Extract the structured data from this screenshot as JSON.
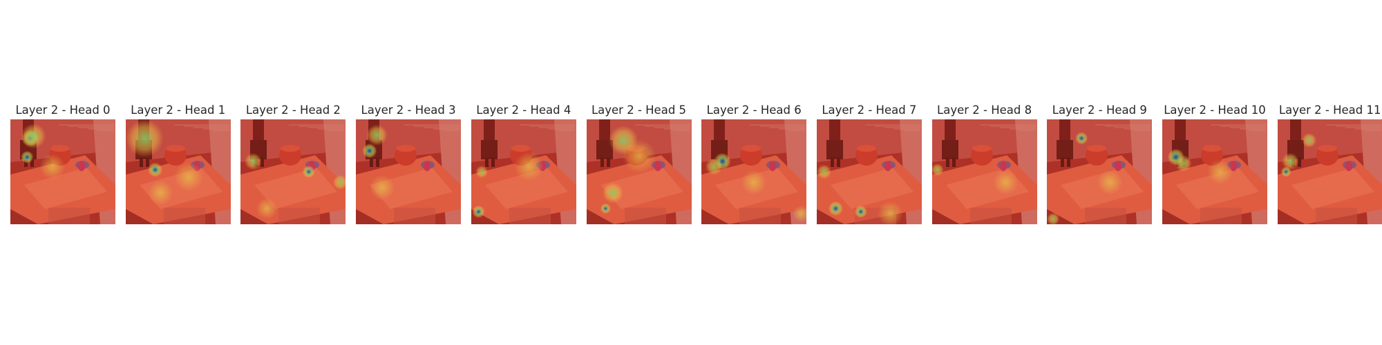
{
  "figure": {
    "panels": [
      {
        "title": "Layer 2 - Head 0",
        "image": "robot-tabletop-attention-heatmap",
        "hotspots": [
          {
            "kind": "blue",
            "u": 0.19,
            "v": 0.18,
            "r": 0.08
          },
          {
            "kind": "green",
            "u": 0.22,
            "v": 0.16,
            "r": 0.12
          },
          {
            "kind": "blue",
            "u": 0.16,
            "v": 0.36,
            "r": 0.06
          },
          {
            "kind": "yellow",
            "u": 0.4,
            "v": 0.45,
            "r": 0.12
          }
        ]
      },
      {
        "title": "Layer 2 - Head 1",
        "image": "robot-tabletop-attention-heatmap",
        "hotspots": [
          {
            "kind": "green",
            "u": 0.18,
            "v": 0.18,
            "r": 0.18
          },
          {
            "kind": "blue",
            "u": 0.28,
            "v": 0.48,
            "r": 0.07
          },
          {
            "kind": "yellow",
            "u": 0.6,
            "v": 0.55,
            "r": 0.14
          },
          {
            "kind": "yellow",
            "u": 0.33,
            "v": 0.7,
            "r": 0.12
          }
        ]
      },
      {
        "title": "Layer 2 - Head 2",
        "image": "robot-tabletop-attention-heatmap",
        "hotspots": [
          {
            "kind": "green",
            "u": 0.12,
            "v": 0.4,
            "r": 0.08
          },
          {
            "kind": "blue",
            "u": 0.65,
            "v": 0.5,
            "r": 0.06
          },
          {
            "kind": "green",
            "u": 0.95,
            "v": 0.6,
            "r": 0.07
          },
          {
            "kind": "yellow",
            "u": 0.25,
            "v": 0.85,
            "r": 0.1
          }
        ]
      },
      {
        "title": "Layer 2 - Head 3",
        "image": "robot-tabletop-attention-heatmap",
        "hotspots": [
          {
            "kind": "blue",
            "u": 0.13,
            "v": 0.3,
            "r": 0.07
          },
          {
            "kind": "green",
            "u": 0.2,
            "v": 0.15,
            "r": 0.1
          },
          {
            "kind": "yellow",
            "u": 0.25,
            "v": 0.65,
            "r": 0.12
          }
        ]
      },
      {
        "title": "Layer 2 - Head 4",
        "image": "robot-tabletop-attention-heatmap",
        "hotspots": [
          {
            "kind": "blue",
            "u": 0.07,
            "v": 0.88,
            "r": 0.06
          },
          {
            "kind": "green",
            "u": 0.1,
            "v": 0.5,
            "r": 0.06
          },
          {
            "kind": "yellow",
            "u": 0.55,
            "v": 0.45,
            "r": 0.14
          }
        ]
      },
      {
        "title": "Layer 2 - Head 5",
        "image": "robot-tabletop-attention-heatmap",
        "hotspots": [
          {
            "kind": "green",
            "u": 0.35,
            "v": 0.2,
            "r": 0.14
          },
          {
            "kind": "yellow",
            "u": 0.5,
            "v": 0.35,
            "r": 0.16
          },
          {
            "kind": "green",
            "u": 0.25,
            "v": 0.7,
            "r": 0.1
          },
          {
            "kind": "blue",
            "u": 0.18,
            "v": 0.85,
            "r": 0.05
          }
        ]
      },
      {
        "title": "Layer 2 - Head 6",
        "image": "robot-tabletop-attention-heatmap",
        "hotspots": [
          {
            "kind": "blue",
            "u": 0.2,
            "v": 0.4,
            "r": 0.08
          },
          {
            "kind": "green",
            "u": 0.12,
            "v": 0.45,
            "r": 0.08
          },
          {
            "kind": "yellow",
            "u": 0.5,
            "v": 0.6,
            "r": 0.12
          },
          {
            "kind": "yellow",
            "u": 0.95,
            "v": 0.9,
            "r": 0.08
          }
        ]
      },
      {
        "title": "Layer 2 - Head 7",
        "image": "robot-tabletop-attention-heatmap",
        "hotspots": [
          {
            "kind": "blue",
            "u": 0.18,
            "v": 0.85,
            "r": 0.07
          },
          {
            "kind": "blue",
            "u": 0.42,
            "v": 0.88,
            "r": 0.06
          },
          {
            "kind": "green",
            "u": 0.07,
            "v": 0.5,
            "r": 0.07
          },
          {
            "kind": "yellow",
            "u": 0.7,
            "v": 0.9,
            "r": 0.12
          }
        ]
      },
      {
        "title": "Layer 2 - Head 8",
        "image": "robot-tabletop-attention-heatmap",
        "hotspots": [
          {
            "kind": "green",
            "u": 0.05,
            "v": 0.48,
            "r": 0.06
          },
          {
            "kind": "yellow",
            "u": 0.7,
            "v": 0.6,
            "r": 0.12
          }
        ]
      },
      {
        "title": "Layer 2 - Head 9",
        "image": "robot-tabletop-attention-heatmap",
        "hotspots": [
          {
            "kind": "blue",
            "u": 0.33,
            "v": 0.18,
            "r": 0.06
          },
          {
            "kind": "green",
            "u": 0.06,
            "v": 0.95,
            "r": 0.06
          },
          {
            "kind": "yellow",
            "u": 0.6,
            "v": 0.6,
            "r": 0.12
          }
        ]
      },
      {
        "title": "Layer 2 - Head 10",
        "image": "robot-tabletop-attention-heatmap",
        "hotspots": [
          {
            "kind": "blue",
            "u": 0.13,
            "v": 0.36,
            "r": 0.08
          },
          {
            "kind": "green",
            "u": 0.2,
            "v": 0.42,
            "r": 0.08
          },
          {
            "kind": "yellow",
            "u": 0.55,
            "v": 0.5,
            "r": 0.12
          }
        ]
      },
      {
        "title": "Layer 2 - Head 11",
        "image": "robot-tabletop-attention-heatmap",
        "hotspots": [
          {
            "kind": "green",
            "u": 0.12,
            "v": 0.4,
            "r": 0.08
          },
          {
            "kind": "blue",
            "u": 0.08,
            "v": 0.5,
            "r": 0.05
          },
          {
            "kind": "green",
            "u": 0.3,
            "v": 0.2,
            "r": 0.07
          }
        ]
      }
    ],
    "colors": {
      "background": "#ffffff",
      "title_text": "#262626",
      "heat_low": "#8a1c1c",
      "heat_mid": "#e0452c",
      "heat_yellow": "#e8c24a",
      "heat_green": "#7fd36a",
      "heat_blue": "#1f3fb0"
    }
  }
}
